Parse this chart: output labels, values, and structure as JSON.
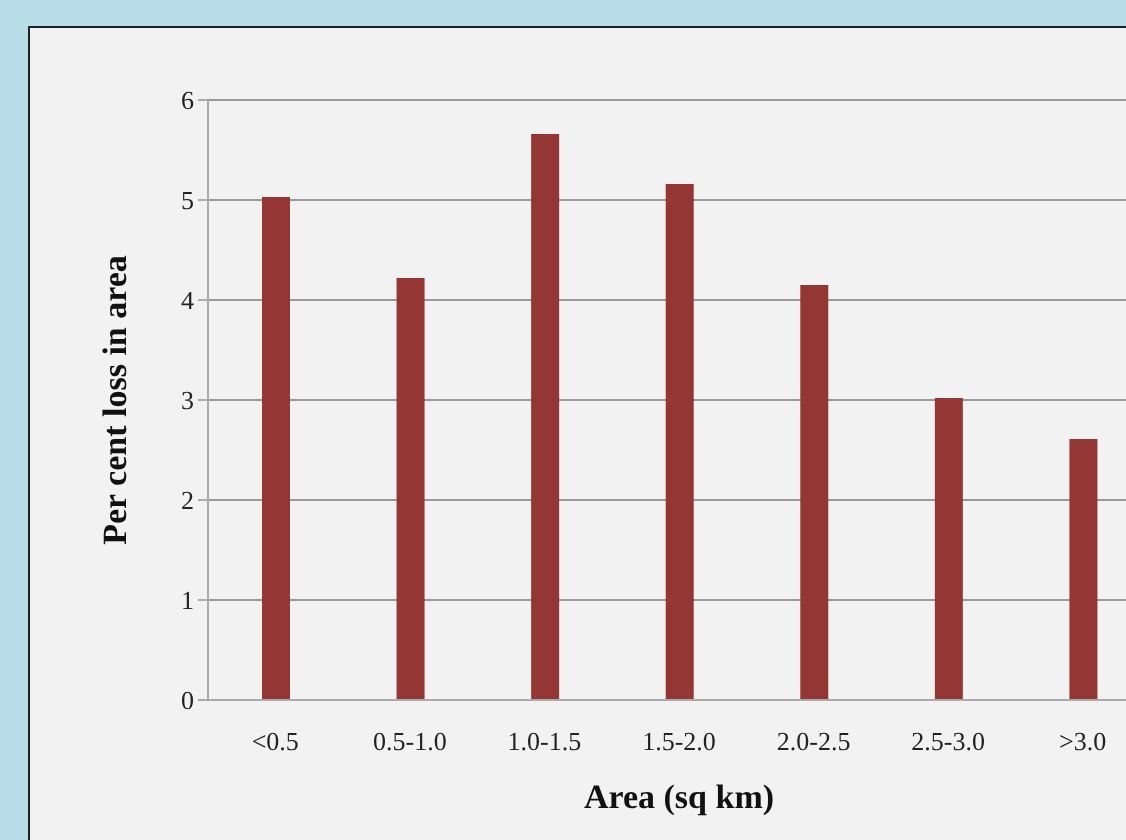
{
  "chart_data": {
    "type": "bar",
    "xlabel": "Area (sq km)",
    "ylabel": "Per cent loss in area",
    "categories": [
      "<0.5",
      "0.5-1.0",
      "1.0-1.5",
      "1.5-2.0",
      "2.0-2.5",
      "2.5-3.0",
      ">3.0"
    ],
    "values": [
      5.03,
      4.22,
      5.66,
      5.16,
      4.15,
      3.02,
      2.61
    ],
    "color": "#943634",
    "ylim": [
      0,
      6
    ],
    "yticks": [
      0,
      1,
      2,
      3,
      4,
      5,
      6
    ],
    "grid": "y"
  }
}
